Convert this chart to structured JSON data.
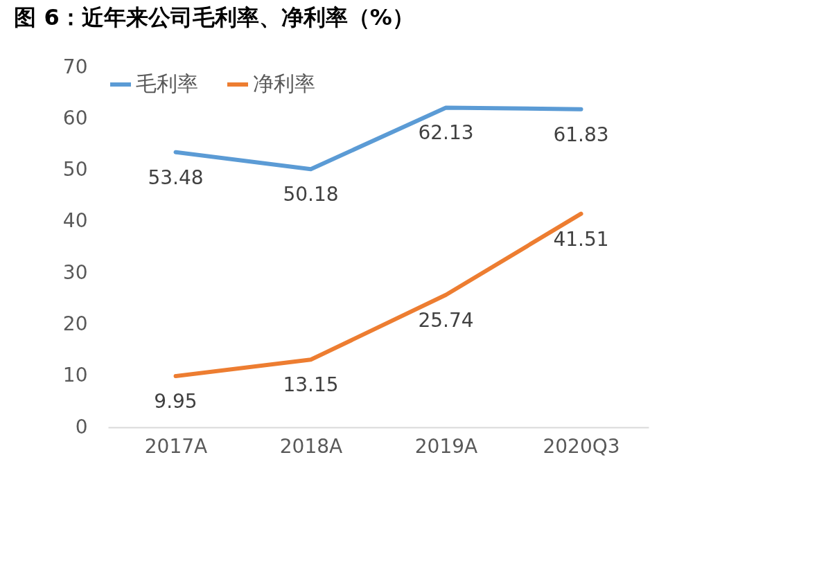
{
  "chart_data": {
    "type": "line",
    "title": "图 6：近年来公司毛利率、净利率（%）",
    "categories": [
      "2017A",
      "2018A",
      "2019A",
      "2020Q3"
    ],
    "series": [
      {
        "name": "毛利率",
        "color": "#5b9bd5",
        "values": [
          53.48,
          50.18,
          62.13,
          61.83
        ]
      },
      {
        "name": "净利率",
        "color": "#ed7d31",
        "values": [
          9.95,
          13.15,
          25.74,
          41.51
        ]
      }
    ],
    "ylim": [
      0,
      70
    ],
    "yticks": [
      0,
      10,
      20,
      30,
      40,
      50,
      60,
      70
    ],
    "grid": false,
    "legend": "top",
    "data_labels": true,
    "marker": "none",
    "line_style": "solid"
  }
}
